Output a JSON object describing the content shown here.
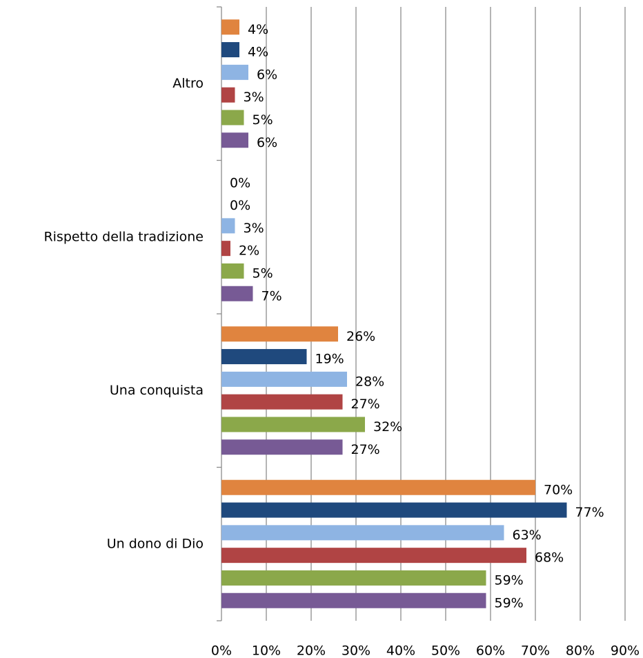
{
  "chart_data": {
    "type": "hbar",
    "categories": [
      "Altro",
      "Rispetto della tradizione",
      "Una conquista",
      "Un dono di Dio"
    ],
    "series": [
      {
        "color": "#e0843f",
        "values": [
          4,
          0,
          26,
          70
        ],
        "value_labels": [
          "4%",
          "0%",
          "26%",
          "70%"
        ]
      },
      {
        "color": "#1f497d",
        "values": [
          4,
          0,
          19,
          77
        ],
        "value_labels": [
          "4%",
          "0%",
          "19%",
          "77%"
        ]
      },
      {
        "color": "#8eb4e3",
        "values": [
          6,
          3,
          28,
          63
        ],
        "value_labels": [
          "6%",
          "3%",
          "28%",
          "63%"
        ]
      },
      {
        "color": "#b04444",
        "values": [
          3,
          2,
          27,
          68
        ],
        "value_labels": [
          "3%",
          "2%",
          "27%",
          "68%"
        ]
      },
      {
        "color": "#8ba84a",
        "values": [
          5,
          5,
          32,
          59
        ],
        "value_labels": [
          "5%",
          "5%",
          "32%",
          "59%"
        ]
      },
      {
        "color": "#775a95",
        "values": [
          6,
          7,
          27,
          59
        ],
        "value_labels": [
          "6%",
          "7%",
          "27%",
          "59%"
        ]
      }
    ],
    "xlim": [
      0,
      90
    ],
    "xticks": [
      {
        "value": 0,
        "label": "0%"
      },
      {
        "value": 10,
        "label": "10%"
      },
      {
        "value": 20,
        "label": "20%"
      },
      {
        "value": 30,
        "label": "30%"
      },
      {
        "value": 40,
        "label": "40%"
      },
      {
        "value": 50,
        "label": "50%"
      },
      {
        "value": 60,
        "label": "60%"
      },
      {
        "value": 70,
        "label": "70%"
      },
      {
        "value": 80,
        "label": "80%"
      },
      {
        "value": 90,
        "label": "90%"
      }
    ],
    "grid": true
  }
}
